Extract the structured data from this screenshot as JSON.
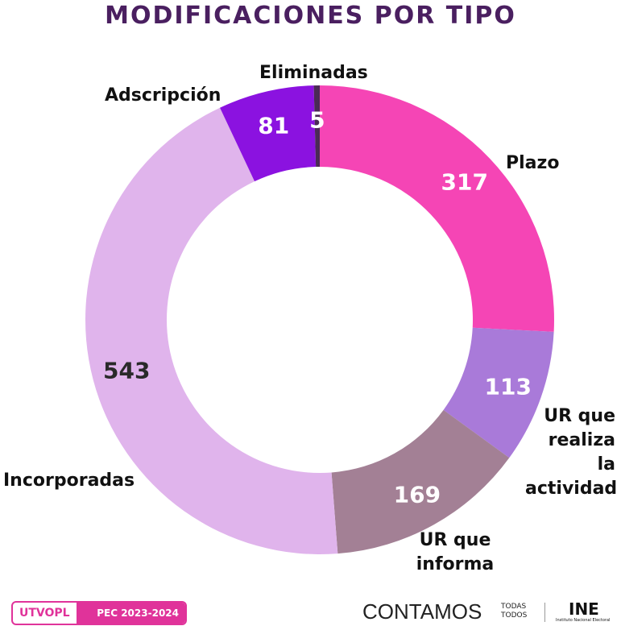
{
  "chart_data": {
    "type": "donut",
    "title": "MODIFICACIONES POR TIPO",
    "categories": [
      "Plazo",
      "UR que realiza la actividad",
      "UR que informa",
      "Incorporadas",
      "Adscripción",
      "Eliminadas"
    ],
    "values": [
      317,
      113,
      169,
      543,
      81,
      5
    ],
    "colors": [
      "#f545b5",
      "#a97ad9",
      "#a38095",
      "#e0b4ec",
      "#8b12e0",
      "#4a2a55"
    ]
  },
  "footer": {
    "badge": "UTVOPL",
    "process": "PEC 2023-2024",
    "slogan": "CONTAMOS",
    "slogan_top": "TODAS",
    "slogan_bottom": "TODOS",
    "logo": "INE",
    "logo_sub": "Instituto Nacional Electoral"
  }
}
